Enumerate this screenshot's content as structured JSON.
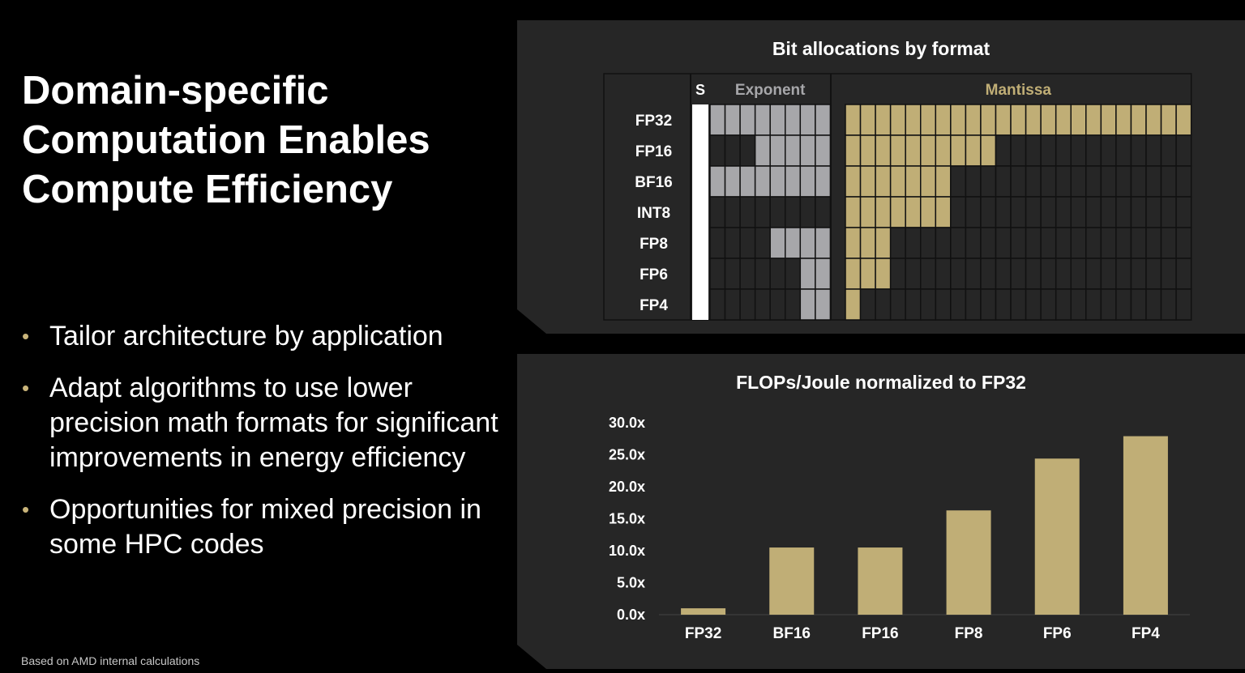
{
  "slide": {
    "title": "Domain-specific Computation Enables Compute Efficiency",
    "bullets": [
      "Tailor architecture by application",
      "Adapt algorithms to use lower precision math formats for significant improvements in energy efficiency",
      "Opportunities for mixed precision in some HPC codes"
    ],
    "footnote": "Based on AMD internal calculations"
  },
  "colors": {
    "accent": "#c0ae76",
    "exponent": "#a7a7aa",
    "sign": "#ffffff",
    "panel": "#262626",
    "grid": "#111111"
  },
  "chart_data": [
    {
      "type": "table",
      "title": "Bit allocations by format",
      "columns": [
        "S",
        "Exponent",
        "Mantissa"
      ],
      "rows": [
        {
          "format": "FP32",
          "sign": 1,
          "exponent": 8,
          "mantissa": 23
        },
        {
          "format": "FP16",
          "sign": 1,
          "exponent": 5,
          "mantissa": 10
        },
        {
          "format": "BF16",
          "sign": 1,
          "exponent": 8,
          "mantissa": 7
        },
        {
          "format": "INT8",
          "sign": 1,
          "exponent": 0,
          "mantissa": 7
        },
        {
          "format": "FP8",
          "sign": 1,
          "exponent": 4,
          "mantissa": 3
        },
        {
          "format": "FP6",
          "sign": 1,
          "exponent": 2,
          "mantissa": 3
        },
        {
          "format": "FP4",
          "sign": 1,
          "exponent": 2,
          "mantissa": 1
        }
      ]
    },
    {
      "type": "bar",
      "title": "FLOPs/Joule normalized to FP32",
      "categories": [
        "FP32",
        "BF16",
        "FP16",
        "FP8",
        "FP6",
        "FP4"
      ],
      "values": [
        1.0,
        10.5,
        10.5,
        16.3,
        24.4,
        27.9
      ],
      "ylim": [
        0,
        30
      ],
      "yticks": [
        "0.0x",
        "5.0x",
        "10.0x",
        "15.0x",
        "20.0x",
        "25.0x",
        "30.0x"
      ],
      "grid": false
    }
  ]
}
